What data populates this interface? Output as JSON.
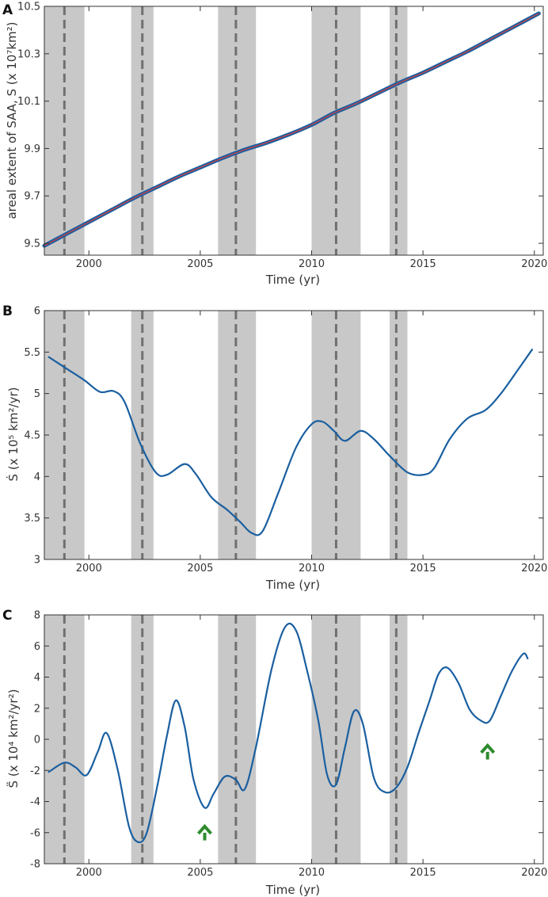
{
  "figure": {
    "colors": {
      "band": "#c8c8c8",
      "dashed": "#707070",
      "curve": "#1a5fa0",
      "fit": "#d94040",
      "arrow": "#2e8b2e",
      "axis": "#333333"
    }
  },
  "chart_data": [
    {
      "panel_label": "A",
      "type": "line",
      "xlabel": "Time (yr)",
      "ylabel": "areal extent of SAA, S (x 10⁷km²)",
      "xlim": [
        1998,
        2020.4
      ],
      "ylim": [
        9.45,
        10.5
      ],
      "xticks": [
        2000,
        2005,
        2010,
        2015,
        2020
      ],
      "xtick_labels": [
        "2000",
        "2005",
        "2010",
        "2015",
        "2020"
      ],
      "yticks": [
        9.5,
        9.7,
        9.9,
        10.1,
        10.3,
        10.5
      ],
      "ytick_labels": [
        "9.5",
        "9.7",
        "9.9",
        "10.1",
        "10.3",
        "10.5"
      ],
      "shaded_intervals": [
        [
          1998,
          1999.8
        ],
        [
          2001.9,
          2002.9
        ],
        [
          2005.8,
          2007.5
        ],
        [
          2010,
          2012.2
        ],
        [
          2013.5,
          2014.3
        ]
      ],
      "dashed_lines": [
        1998.9,
        2002.4,
        2006.6,
        2011.1,
        2013.8
      ],
      "series": [
        {
          "name": "S (observed)",
          "x": [
            1998,
            1999,
            2000,
            2001,
            2002,
            2003,
            2004,
            2005,
            2006,
            2007,
            2008,
            2009,
            2010,
            2011,
            2012,
            2013,
            2014,
            2015,
            2016,
            2017,
            2018,
            2019,
            2020.2
          ],
          "values": [
            9.49,
            9.54,
            9.59,
            9.64,
            9.69,
            9.735,
            9.78,
            9.82,
            9.86,
            9.895,
            9.925,
            9.96,
            10.0,
            10.05,
            10.09,
            10.135,
            10.18,
            10.22,
            10.265,
            10.31,
            10.36,
            10.41,
            10.47
          ]
        }
      ]
    },
    {
      "panel_label": "B",
      "type": "line",
      "xlabel": "Time (yr)",
      "ylabel": "Ṡ (x 10⁵ km²/yr)",
      "xlim": [
        1998,
        2020.4
      ],
      "ylim": [
        3,
        6
      ],
      "xticks": [
        2000,
        2005,
        2010,
        2015,
        2020
      ],
      "xtick_labels": [
        "2000",
        "2005",
        "2010",
        "2015",
        "2020"
      ],
      "yticks": [
        3,
        3.5,
        4,
        4.5,
        5,
        5.5,
        6
      ],
      "ytick_labels": [
        "3",
        "3.5",
        "4",
        "4.5",
        "5",
        "5.5",
        "6"
      ],
      "shaded_intervals": [
        [
          1998,
          1999.8
        ],
        [
          2001.9,
          2002.9
        ],
        [
          2005.8,
          2007.5
        ],
        [
          2010,
          2012.2
        ],
        [
          2013.5,
          2014.3
        ]
      ],
      "dashed_lines": [
        1998.9,
        2002.4,
        2006.6,
        2011.1,
        2013.8
      ],
      "series": [
        {
          "name": "dS/dt",
          "x": [
            1998.2,
            1999,
            1999.8,
            2000.5,
            2001.1,
            2001.6,
            2002.3,
            2003,
            2003.5,
            2004.3,
            2004.8,
            2005.5,
            2006.2,
            2006.8,
            2007.3,
            2007.8,
            2008.5,
            2009.3,
            2010,
            2010.5,
            2011,
            2011.5,
            2012.2,
            2012.8,
            2013.5,
            2014.3,
            2015,
            2015.5,
            2016.2,
            2017,
            2017.8,
            2018.5,
            2019.3,
            2019.9
          ],
          "values": [
            5.44,
            5.3,
            5.16,
            5.02,
            5.03,
            4.9,
            4.4,
            4.05,
            4.02,
            4.15,
            4.03,
            3.75,
            3.6,
            3.45,
            3.32,
            3.34,
            3.8,
            4.35,
            4.63,
            4.66,
            4.55,
            4.43,
            4.55,
            4.45,
            4.25,
            4.05,
            4.02,
            4.1,
            4.45,
            4.7,
            4.8,
            5.0,
            5.3,
            5.53
          ]
        }
      ]
    },
    {
      "panel_label": "C",
      "type": "line",
      "xlabel": "Time (yr)",
      "ylabel": "S̈ (x 10⁴ km²/yr²)",
      "xlim": [
        1998,
        2020.4
      ],
      "ylim": [
        -8,
        8
      ],
      "xticks": [
        2000,
        2005,
        2010,
        2015,
        2020
      ],
      "xtick_labels": [
        "2000",
        "2005",
        "2010",
        "2015",
        "2020"
      ],
      "yticks": [
        -8,
        -6,
        -4,
        -2,
        0,
        2,
        4,
        6,
        8
      ],
      "ytick_labels": [
        "-8",
        "-6",
        "-4",
        "-2",
        "0",
        "2",
        "4",
        "6",
        "8"
      ],
      "shaded_intervals": [
        [
          1998,
          1999.8
        ],
        [
          2001.9,
          2002.9
        ],
        [
          2005.8,
          2007.5
        ],
        [
          2010,
          2012.2
        ],
        [
          2013.5,
          2014.3
        ]
      ],
      "dashed_lines": [
        1998.9,
        2002.4,
        2006.6,
        2011.1,
        2013.8
      ],
      "arrows": [
        {
          "x": 2005.2,
          "y_tail": -6.5,
          "y_head": -5.6
        },
        {
          "x": 2017.9,
          "y_tail": -1.3,
          "y_head": -0.4
        }
      ],
      "series": [
        {
          "name": "d2S/dt2",
          "x": [
            1998.2,
            1998.9,
            1999.4,
            1999.9,
            2000.4,
            2000.8,
            2001.3,
            2001.8,
            2002.2,
            2002.6,
            2003.1,
            2003.5,
            2003.9,
            2004.3,
            2004.7,
            2005.2,
            2005.6,
            2006.1,
            2006.6,
            2007,
            2007.5,
            2008.2,
            2008.8,
            2009.3,
            2009.8,
            2010.3,
            2010.7,
            2011.1,
            2011.5,
            2011.9,
            2012.3,
            2012.8,
            2013.3,
            2013.8,
            2014.3,
            2014.8,
            2015.3,
            2015.7,
            2016.1,
            2016.6,
            2017.1,
            2017.6,
            2018,
            2018.5,
            2019,
            2019.5,
            2019.7
          ],
          "values": [
            -2.1,
            -1.5,
            -1.8,
            -2.3,
            -0.8,
            0.4,
            -2.0,
            -5.6,
            -6.6,
            -6.0,
            -2.8,
            0.2,
            2.5,
            0.8,
            -2.6,
            -4.4,
            -3.5,
            -2.4,
            -2.6,
            -3.2,
            -0.5,
            4.5,
            7.2,
            7.0,
            4.4,
            1.2,
            -2.3,
            -2.9,
            -0.5,
            1.8,
            1.0,
            -2.5,
            -3.4,
            -3.1,
            -1.8,
            0.4,
            2.5,
            4.2,
            4.6,
            3.6,
            1.9,
            1.2,
            1.2,
            2.8,
            4.4,
            5.5,
            5.2
          ]
        }
      ]
    }
  ]
}
